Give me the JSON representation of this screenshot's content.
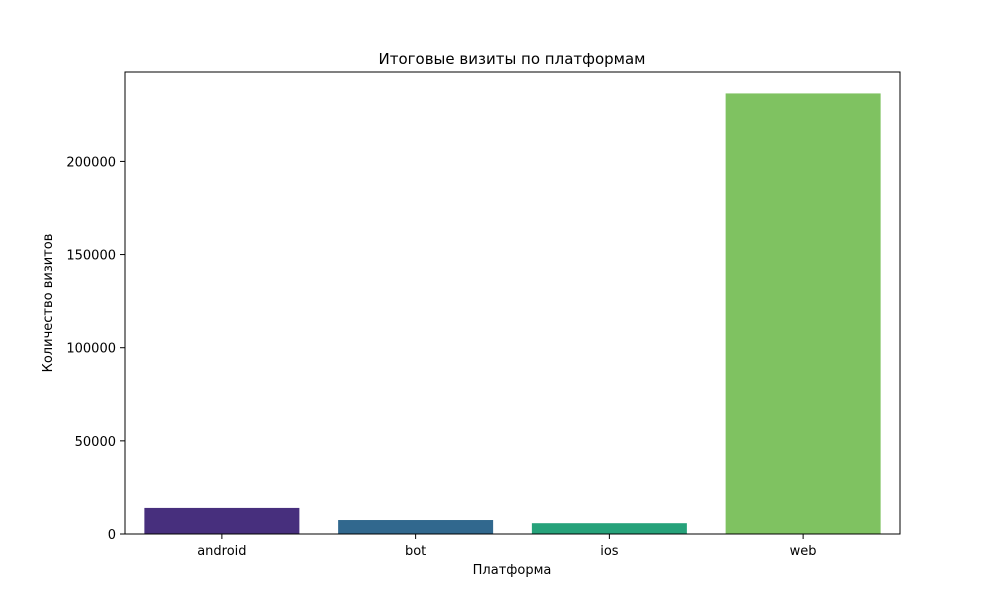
{
  "chart_data": {
    "type": "bar",
    "title": "Итоговые визиты по платформам",
    "xlabel": "Платформа",
    "ylabel": "Количество визитов",
    "categories": [
      "android",
      "bot",
      "ios",
      "web"
    ],
    "values": [
      14000,
      7500,
      5800,
      236500
    ],
    "colors": [
      "#472f7d",
      "#31688e",
      "#26a27a",
      "#7fc261"
    ],
    "ylim": [
      0,
      248000
    ],
    "yticks": [
      0,
      50000,
      100000,
      150000,
      200000
    ],
    "ytick_labels": [
      "0",
      "50000",
      "100000",
      "150000",
      "200000"
    ],
    "grid": false,
    "legend": "none"
  }
}
